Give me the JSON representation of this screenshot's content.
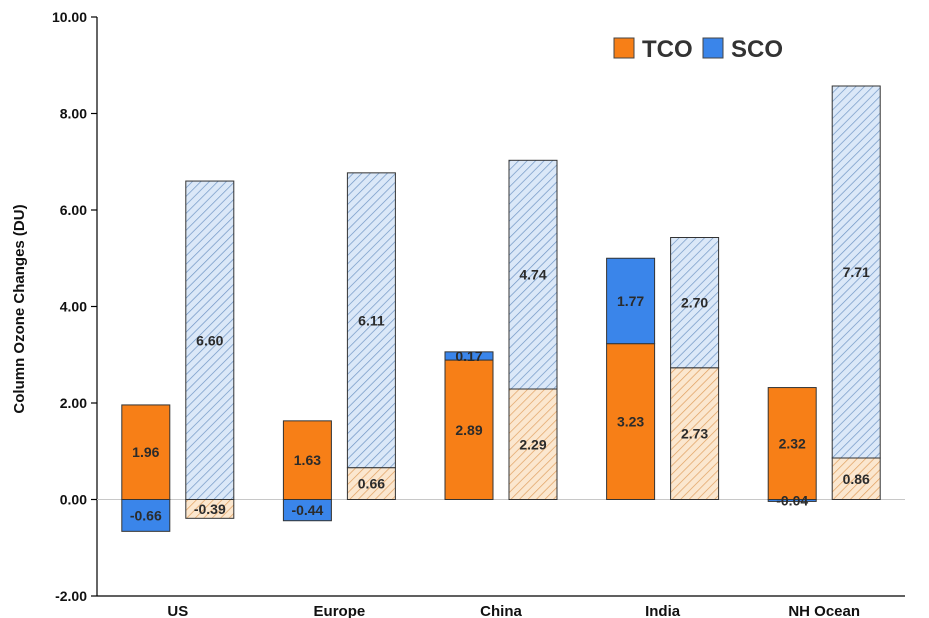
{
  "chart_data": {
    "type": "bar",
    "stacked": true,
    "ylabel": "Column Ozone Changes (DU)",
    "ylim": [
      -2,
      10
    ],
    "yticks": [
      10,
      8,
      6,
      4,
      2,
      0,
      -2
    ],
    "ytick_labels": [
      "10.00",
      "8.00",
      "6.00",
      "4.00",
      "2.00",
      "0.00",
      "-2.00"
    ],
    "categories": [
      "US",
      "Europe",
      "China",
      "India",
      "NH Ocean"
    ],
    "legend": {
      "position": "top-right",
      "entries": [
        "TCO",
        "SCO"
      ]
    },
    "colors": {
      "tco_solid": "#f77f17",
      "sco_solid": "#3a85ea",
      "tco_hatched_fill": "#fbe7cf",
      "tco_hatched_line": "#e0a060",
      "sco_hatched_fill": "#dbe8f8",
      "sco_hatched_line": "#6f95c4"
    },
    "series": [
      {
        "name": "TCO",
        "bar": "solid",
        "values": [
          1.96,
          1.63,
          2.89,
          3.23,
          2.32
        ],
        "labels": [
          "1.96",
          "1.63",
          "2.89",
          "3.23",
          "2.32"
        ]
      },
      {
        "name": "SCO",
        "bar": "solid",
        "values": [
          -0.66,
          -0.44,
          0.17,
          1.77,
          -0.04
        ],
        "labels": [
          "-0.66",
          "-0.44",
          "0.17",
          "1.77",
          "-0.04"
        ]
      },
      {
        "name": "TCO",
        "bar": "hatched",
        "values": [
          -0.39,
          0.66,
          2.29,
          2.73,
          0.86
        ],
        "labels": [
          "-0.39",
          "0.66",
          "2.29",
          "2.73",
          "0.86"
        ]
      },
      {
        "name": "SCO",
        "bar": "hatched",
        "values": [
          6.6,
          6.11,
          4.74,
          2.7,
          7.71
        ],
        "labels": [
          "6.60",
          "6.11",
          "4.74",
          "2.70",
          "7.71"
        ]
      }
    ]
  }
}
